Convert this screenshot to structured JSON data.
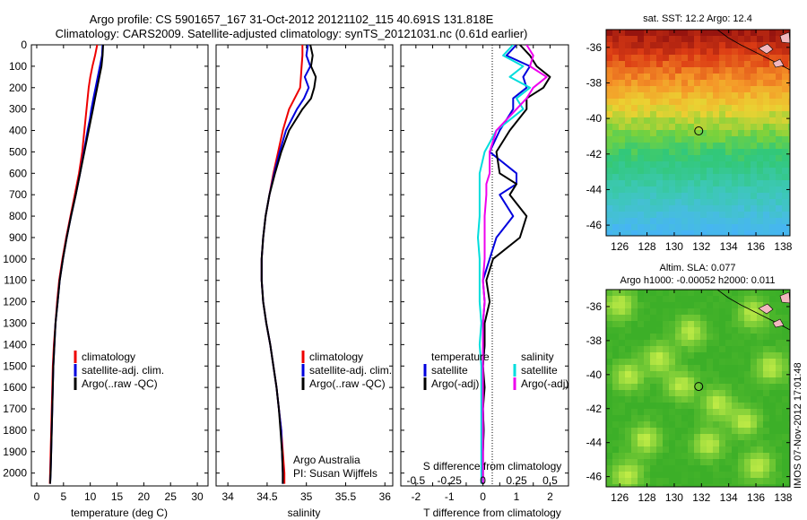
{
  "header": {
    "line1": "Argo profile: CS 5901657_167 31-Oct-2012 20121102_115 40.691S 131.818E",
    "line2": "Climatology: CARS2009. Satellite-adjusted climatology: synTS_20121031.nc (0.61d earlier)"
  },
  "colors": {
    "climatology": "#ee0000",
    "satellite": "#0000dd",
    "argo": "#000000",
    "salinity_sat": "#00dddd",
    "salinity_argo": "#ee00ee"
  },
  "chart_data": [
    {
      "type": "line",
      "xlabel": "temperature (deg C)",
      "xlim": [
        -1,
        32
      ],
      "xticks": [
        0,
        5,
        10,
        15,
        20,
        25,
        30
      ],
      "ylim": [
        0,
        2060
      ],
      "yticks": [
        0,
        100,
        200,
        300,
        400,
        500,
        600,
        700,
        800,
        900,
        1000,
        1100,
        1200,
        1300,
        1400,
        1500,
        1600,
        1700,
        1800,
        1900,
        2000
      ],
      "y": [
        0,
        50,
        100,
        150,
        200,
        250,
        300,
        350,
        400,
        500,
        600,
        700,
        800,
        900,
        1000,
        1100,
        1200,
        1300,
        1400,
        1500,
        1600,
        1700,
        1800,
        1900,
        2000,
        2050
      ],
      "series": [
        {
          "name": "climatology",
          "color": "#ee0000",
          "values": [
            11.3,
            10.9,
            10.4,
            10.0,
            9.7,
            9.5,
            9.3,
            9.1,
            8.9,
            8.5,
            7.9,
            7.1,
            6.3,
            5.5,
            4.8,
            4.2,
            3.8,
            3.5,
            3.2,
            3.0,
            2.9,
            2.8,
            2.7,
            2.6,
            2.5,
            2.45
          ]
        },
        {
          "name": "satellite-adj. clim.",
          "color": "#0000dd",
          "values": [
            12.3,
            12.2,
            11.8,
            11.4,
            11.0,
            10.6,
            10.2,
            9.9,
            9.5,
            8.8,
            8.1,
            7.3,
            6.4,
            5.6,
            4.9,
            4.3,
            3.9,
            3.5,
            3.3,
            3.1,
            3.0,
            2.9,
            2.8,
            2.7,
            2.6,
            2.5
          ]
        },
        {
          "name": "Argo(..raw -QC)",
          "color": "#000000",
          "values": [
            12.4,
            12.3,
            12.1,
            11.7,
            11.3,
            10.9,
            10.5,
            10.1,
            9.7,
            8.9,
            8.1,
            7.3,
            6.4,
            5.6,
            4.9,
            4.3,
            3.9,
            3.5,
            3.3,
            3.1,
            3.0,
            2.9,
            2.8,
            2.7,
            2.6,
            2.5
          ]
        }
      ],
      "legend": [
        "climatology",
        "satellite-adj. clim.",
        "Argo(..raw -QC)"
      ]
    },
    {
      "type": "line",
      "xlabel": "salinity",
      "xlim": [
        33.85,
        36.1
      ],
      "xticks": [
        34,
        34.5,
        35,
        35.5,
        36
      ],
      "xtick_labels": [
        "34",
        "34.5",
        "35",
        "35.5",
        "36"
      ],
      "ylim": [
        0,
        2060
      ],
      "y": [
        0,
        50,
        100,
        150,
        200,
        250,
        300,
        400,
        500,
        600,
        700,
        800,
        900,
        1000,
        1100,
        1200,
        1300,
        1400,
        1500,
        1600,
        1700,
        1800,
        1900,
        2000,
        2050
      ],
      "series": [
        {
          "name": "climatology",
          "color": "#ee0000",
          "values": [
            34.95,
            34.95,
            34.94,
            34.93,
            34.92,
            34.85,
            34.78,
            34.7,
            34.64,
            34.58,
            34.53,
            34.48,
            34.45,
            34.43,
            34.43,
            34.45,
            34.49,
            34.54,
            34.58,
            34.62,
            34.65,
            34.68,
            34.7,
            34.72,
            34.72
          ]
        },
        {
          "name": "satellite-adj. clim.",
          "color": "#0000dd",
          "values": [
            35.02,
            35.0,
            35.05,
            34.98,
            35.03,
            34.97,
            34.88,
            34.74,
            34.66,
            34.59,
            34.53,
            34.48,
            34.45,
            34.43,
            34.43,
            34.45,
            34.49,
            34.54,
            34.58,
            34.62,
            34.65,
            34.68,
            34.69,
            34.7,
            34.7
          ]
        },
        {
          "name": "Argo(..raw -QC)",
          "color": "#000000",
          "values": [
            35.05,
            35.08,
            35.06,
            35.12,
            35.1,
            35.06,
            34.95,
            34.78,
            34.68,
            34.6,
            34.53,
            34.48,
            34.45,
            34.43,
            34.43,
            34.45,
            34.49,
            34.54,
            34.58,
            34.62,
            34.65,
            34.67,
            34.69,
            34.7,
            34.7
          ]
        }
      ],
      "legend": [
        "climatology",
        "satellite-adj. clim.",
        "Argo(..raw -QC)"
      ],
      "annotation1": "Argo Australia",
      "annotation2": "PI: Susan Wijffels"
    },
    {
      "type": "line",
      "xlabel": "T difference from climatology",
      "xlabel_top": "S difference from climatology",
      "xlim": [
        -2.45,
        2.55
      ],
      "xticks": [
        -2,
        -1.5,
        -1,
        -0.5,
        0,
        0.5,
        1,
        1.5,
        2
      ],
      "xtick_labels": [
        "-2",
        "",
        "-1",
        "",
        "0",
        "",
        "1",
        "",
        "2"
      ],
      "sticks": [
        -0.5,
        -0.25,
        0,
        0.25,
        0.5
      ],
      "stick_labels": [
        "-0.5",
        "-0.25",
        "0",
        "0.25",
        "0.5"
      ],
      "ylim": [
        0,
        2060
      ],
      "y": [
        0,
        50,
        100,
        150,
        200,
        250,
        300,
        400,
        500,
        600,
        650,
        700,
        800,
        900,
        1000,
        1100,
        1200,
        1300,
        1400,
        1500,
        1600,
        1700,
        1800,
        1900,
        2000,
        2050
      ],
      "series": [
        {
          "name": "temperature satellite",
          "color": "#0000dd",
          "values": [
            1.0,
            0.7,
            1.4,
            1.2,
            1.3,
            0.9,
            0.9,
            0.5,
            0.2,
            1.0,
            1.0,
            0.5,
            0.9,
            0.4,
            0.2,
            0.0,
            0.05,
            0.0,
            0.05,
            0.0,
            0.02,
            0.0,
            0.02,
            0.0,
            0.0,
            0.0
          ]
        },
        {
          "name": "temperature Argo(-adj)",
          "color": "#000000",
          "values": [
            1.1,
            1.4,
            1.6,
            2.0,
            1.8,
            1.3,
            1.3,
            0.8,
            0.4,
            0.5,
            1.0,
            0.8,
            1.3,
            1.1,
            0.3,
            0.1,
            0.2,
            0.05,
            0.05,
            0.0,
            0.05,
            0.0,
            0.02,
            0.0,
            0.0,
            0.0
          ]
        },
        {
          "name": "salinity satellite",
          "color": "#00dddd",
          "values": [
            0.9,
            0.6,
            1.2,
            0.8,
            1.4,
            1.0,
            1.2,
            0.4,
            0.05,
            -0.1,
            -0.1,
            -0.1,
            -0.1,
            -0.15,
            -0.1,
            -0.1,
            -0.1,
            -0.05,
            -0.1,
            -0.05,
            -0.05,
            -0.05,
            -0.05,
            -0.05,
            -0.05,
            -0.05
          ]
        },
        {
          "name": "salinity Argo(-adj)",
          "color": "#ee00ee",
          "values": [
            1.3,
            1.5,
            1.4,
            1.9,
            1.5,
            1.3,
            1.0,
            0.4,
            0.2,
            0.2,
            0.1,
            0.1,
            0.05,
            0.05,
            0.05,
            0.0,
            0.05,
            0.0,
            0.0,
            0.0,
            0.0,
            0.0,
            0.0,
            0.0,
            0.0,
            0.0
          ]
        }
      ],
      "legend_temp_title": "temperature",
      "legend_sal_title": "salinity",
      "legend_items": [
        "satellite",
        "Argo(-adj)"
      ]
    },
    {
      "type": "heatmap",
      "title": "sat. SST: 12.2  Argo: 12.4",
      "xticks": [
        126,
        128,
        130,
        132,
        134,
        136,
        138
      ],
      "yticks": [
        -36,
        -38,
        -40,
        -42,
        -44,
        -46
      ],
      "xlim": [
        125,
        138.5
      ],
      "ylim": [
        -46.6,
        -35
      ],
      "argo_position": [
        131.8,
        -40.7
      ]
    },
    {
      "type": "heatmap",
      "title1": "Altim. SLA: 0.077",
      "title2": "Argo h1000: -0.00052 h2000: 0.011",
      "xticks": [
        126,
        128,
        130,
        132,
        134,
        136,
        138
      ],
      "yticks": [
        -36,
        -38,
        -40,
        -42,
        -44,
        -46
      ],
      "xlim": [
        125,
        138.5
      ],
      "ylim": [
        -46.6,
        -35
      ],
      "argo_position": [
        131.8,
        -40.7
      ]
    }
  ],
  "side_stamp": "IMOS 07-Nov-2012 17:01:48"
}
